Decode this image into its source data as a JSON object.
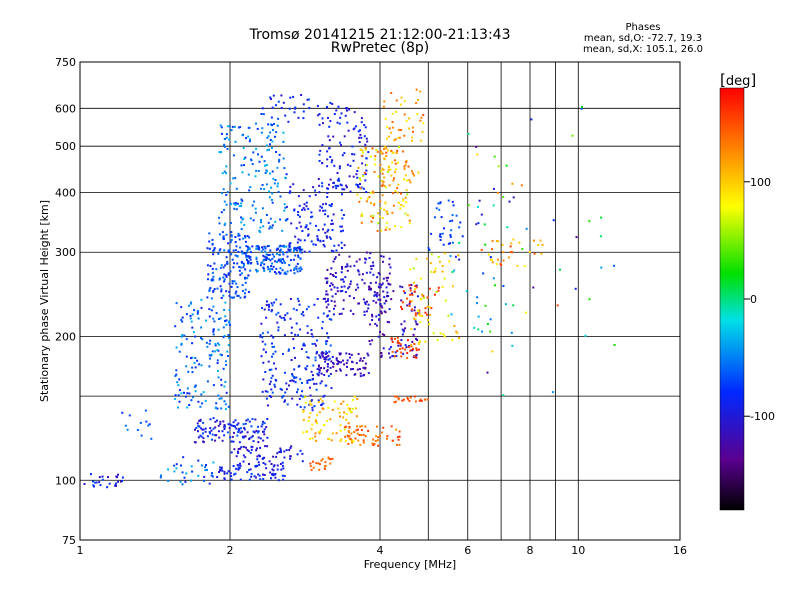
{
  "chart_data": {
    "type": "scatter",
    "title": "Tromsø 20141215 21:12:00-21:13:43",
    "subtitle": "RwPretec (8p)",
    "xlabel": "Frequency [MHz]",
    "ylabel": "Stationary phase Virtual Height [km]",
    "x_scale": "log",
    "y_scale": "log",
    "xlim": [
      1,
      16
    ],
    "ylim": [
      75,
      750
    ],
    "x_ticks": [
      1,
      2,
      4,
      6,
      8,
      10,
      16
    ],
    "x_ticks_minor_lines": [
      5,
      7,
      9
    ],
    "y_ticks": [
      75,
      100,
      200,
      300,
      400,
      500,
      600,
      750
    ],
    "y_ticks_minor_lines": [
      150
    ],
    "grid": true,
    "stats": {
      "title": "Phases",
      "line_o": "mean, sd,O: -72.7, 19.3",
      "line_x": "mean, sd,X: 105.1, 26.0"
    },
    "colorbar": {
      "unit": "deg",
      "range": [
        -180,
        180
      ],
      "ticks": [
        100,
        0,
        -100
      ],
      "tick_labels": [
        "100",
        "0",
        "-100"
      ],
      "colormap": "rainbow (black-purple-blue-cyan-green-yellow-orange-red)"
    },
    "clusters": [
      {
        "f": [
          1.02,
          1.22
        ],
        "h": [
          96,
          104
        ],
        "phase": [
          -120,
          -60
        ],
        "n": 25
      },
      {
        "f": [
          1.2,
          1.4
        ],
        "h": [
          118,
          140
        ],
        "phase": [
          -80,
          -40
        ],
        "n": 12
      },
      {
        "f": [
          1.45,
          1.95
        ],
        "h": [
          98,
          112
        ],
        "phase": [
          -100,
          -30
        ],
        "n": 35
      },
      {
        "f": [
          1.55,
          2.0
        ],
        "h": [
          140,
          240
        ],
        "phase": [
          -90,
          -30
        ],
        "n": 160
      },
      {
        "f": [
          1.7,
          2.4
        ],
        "h": [
          120,
          135
        ],
        "phase": [
          -120,
          -60
        ],
        "n": 120
      },
      {
        "f": [
          1.9,
          2.6
        ],
        "h": [
          100,
          108
        ],
        "phase": [
          -110,
          -70
        ],
        "n": 70
      },
      {
        "f": [
          2.0,
          2.8
        ],
        "h": [
          108,
          118
        ],
        "phase": [
          -120,
          -80
        ],
        "n": 60
      },
      {
        "f": [
          1.8,
          2.2
        ],
        "h": [
          240,
          330
        ],
        "phase": [
          -90,
          -50
        ],
        "n": 150
      },
      {
        "f": [
          1.9,
          2.6
        ],
        "h": [
          330,
          560
        ],
        "phase": [
          -80,
          -30
        ],
        "n": 180
      },
      {
        "f": [
          2.1,
          2.8
        ],
        "h": [
          270,
          310
        ],
        "phase": [
          -90,
          -40
        ],
        "n": 160
      },
      {
        "f": [
          2.3,
          3.2
        ],
        "h": [
          140,
          240
        ],
        "phase": [
          -110,
          -60
        ],
        "n": 220
      },
      {
        "f": [
          2.3,
          2.9
        ],
        "h": [
          560,
          640
        ],
        "phase": [
          -110,
          -60
        ],
        "n": 30
      },
      {
        "f": [
          2.6,
          3.4
        ],
        "h": [
          300,
          420
        ],
        "phase": [
          -110,
          -70
        ],
        "n": 120
      },
      {
        "f": [
          2.8,
          3.6
        ],
        "h": [
          120,
          150
        ],
        "phase": [
          70,
          130
        ],
        "n": 80
      },
      {
        "f": [
          2.9,
          3.3
        ],
        "h": [
          105,
          112
        ],
        "phase": [
          130,
          160
        ],
        "n": 20
      },
      {
        "f": [
          3.0,
          3.8
        ],
        "h": [
          400,
          620
        ],
        "phase": [
          -120,
          -70
        ],
        "n": 120
      },
      {
        "f": [
          3.0,
          3.8
        ],
        "h": [
          165,
          185
        ],
        "phase": [
          -130,
          -100
        ],
        "n": 80
      },
      {
        "f": [
          3.1,
          4.2
        ],
        "h": [
          220,
          300
        ],
        "phase": [
          -130,
          -90
        ],
        "n": 150
      },
      {
        "f": [
          3.4,
          4.4
        ],
        "h": [
          118,
          130
        ],
        "phase": [
          120,
          160
        ],
        "n": 60
      },
      {
        "f": [
          3.6,
          4.6
        ],
        "h": [
          330,
          500
        ],
        "phase": [
          60,
          150
        ],
        "n": 120
      },
      {
        "f": [
          3.8,
          4.8
        ],
        "h": [
          180,
          260
        ],
        "phase": [
          -140,
          -90
        ],
        "n": 100
      },
      {
        "f": [
          4.2,
          5.0
        ],
        "h": [
          145,
          150
        ],
        "phase": [
          140,
          160
        ],
        "n": 20
      },
      {
        "f": [
          4.2,
          4.8
        ],
        "h": [
          180,
          200
        ],
        "phase": [
          140,
          170
        ],
        "n": 30
      },
      {
        "f": [
          4.0,
          4.9
        ],
        "h": [
          420,
          660
        ],
        "phase": [
          80,
          150
        ],
        "n": 70
      },
      {
        "f": [
          4.4,
          5.3
        ],
        "h": [
          220,
          260
        ],
        "phase": [
          150,
          170
        ],
        "n": 30
      },
      {
        "f": [
          4.6,
          5.8
        ],
        "h": [
          190,
          300
        ],
        "phase": [
          60,
          120
        ],
        "n": 60
      },
      {
        "f": [
          5.0,
          5.8
        ],
        "h": [
          300,
          400
        ],
        "phase": [
          -90,
          -50
        ],
        "n": 30
      },
      {
        "f": [
          5.5,
          7.5
        ],
        "h": [
          200,
          400
        ],
        "phase": [
          -120,
          40
        ],
        "n": 40
      },
      {
        "f": [
          6.5,
          8.5
        ],
        "h": [
          280,
          320
        ],
        "phase": [
          80,
          160
        ],
        "n": 30
      },
      {
        "f": [
          6.0,
          12.0
        ],
        "h": [
          150,
          650
        ],
        "phase": [
          -150,
          150
        ],
        "n": 40
      }
    ]
  }
}
